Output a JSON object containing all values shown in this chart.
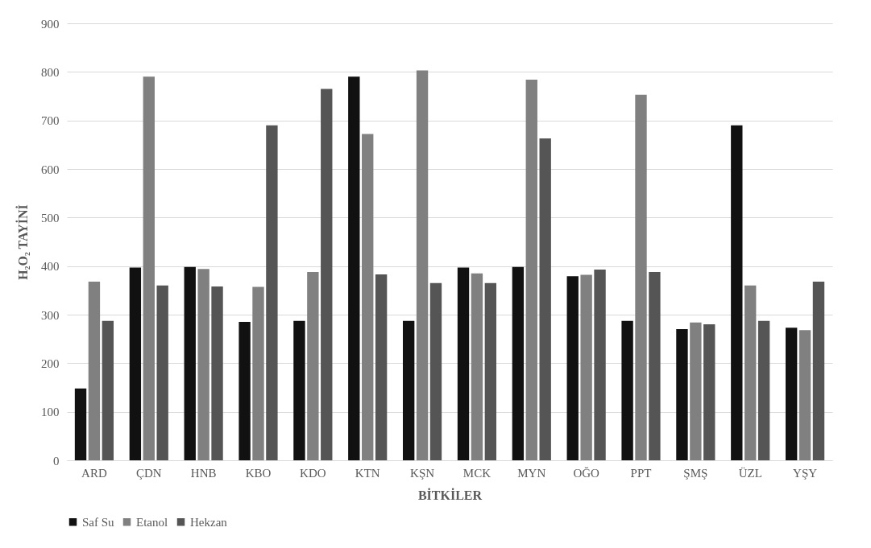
{
  "chart_data": {
    "type": "bar",
    "xlabel": "BİTKİLER",
    "ylabel": "H₂O₂ TAYİNİ",
    "categories": [
      "ARD",
      "ÇDN",
      "HNB",
      "KBO",
      "KDO",
      "KTN",
      "KŞN",
      "MCK",
      "MYN",
      "OĞO",
      "PPT",
      "ŞMŞ",
      "ÜZL",
      "YŞY"
    ],
    "series": [
      {
        "name": "Saf Su",
        "color": "#111111",
        "values": [
          148,
          397,
          398,
          285,
          287,
          790,
          287,
          397,
          398,
          379,
          287,
          270,
          690,
          273
        ]
      },
      {
        "name": "Etanol",
        "color": "#808080",
        "values": [
          368,
          790,
          394,
          357,
          388,
          672,
          803,
          385,
          784,
          382,
          753,
          284,
          360,
          268
        ]
      },
      {
        "name": "Hekzan",
        "color": "#555555",
        "values": [
          287,
          360,
          358,
          690,
          765,
          383,
          365,
          365,
          663,
          393,
          388,
          280,
          287,
          368
        ]
      }
    ],
    "ylim": [
      0,
      900
    ],
    "yticks": [
      0,
      100,
      200,
      300,
      400,
      500,
      600,
      700,
      800,
      900
    ],
    "grid": "y",
    "legend": "bottom"
  }
}
